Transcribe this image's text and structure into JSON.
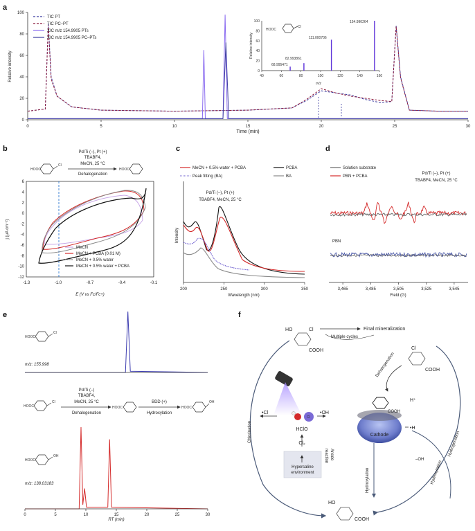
{
  "colors": {
    "purple": "#6a3fd1",
    "darkred": "#8c1b3d",
    "red": "#d42a2a",
    "blue": "#3c52c4",
    "gray": "#666666",
    "black": "#111111",
    "navy": "#2a2a9a",
    "dashblue": "#2f7ad1"
  },
  "panel_a": {
    "label": "a",
    "legend": [
      "TIC PT",
      "TIC PC–PT",
      "XIC m/z 154.9905 PTs",
      "XIC m/z 154.9905 PC–PTs"
    ],
    "inset": {
      "mol_label": "HOOC",
      "mz_label": "m/z",
      "ylabel": "Relative intensity",
      "peak_labels": [
        "154.990264",
        "111.000706",
        "82.993861",
        "68.995471"
      ],
      "chart_data": {
        "type": "bar",
        "x": [
          68.995471,
          82.993861,
          111.000706,
          154.990264
        ],
        "values": [
          8,
          15,
          62,
          100
        ],
        "xlim": [
          40,
          160
        ],
        "ylim": [
          0,
          100
        ],
        "xticks": [
          "40",
          "60",
          "80",
          "100",
          "120",
          "140",
          "160"
        ],
        "yticks": [
          "0",
          "20",
          "40",
          "60",
          "80",
          "100"
        ]
      }
    },
    "chart_data": {
      "type": "line",
      "title": "",
      "xlabel": "Time (min)",
      "ylabel": "Relative intensity",
      "xlim": [
        0,
        30
      ],
      "ylim": [
        0,
        100
      ],
      "xticks": [
        "0",
        "5",
        "10",
        "15",
        "20",
        "25",
        "30"
      ],
      "yticks": [
        "0",
        "20",
        "40",
        "60",
        "80",
        "100"
      ],
      "series": [
        {
          "name": "TIC PT",
          "x": [
            0,
            1.2,
            1.4,
            1.6,
            2,
            3,
            5,
            10,
            15,
            18,
            19,
            20,
            21,
            22,
            23,
            24,
            24.8,
            25.1,
            25.4,
            26,
            28,
            30
          ],
          "values": [
            8,
            10,
            90,
            40,
            22,
            12,
            9,
            8,
            9,
            11,
            18,
            27,
            25,
            23,
            19,
            16,
            17,
            88,
            40,
            9,
            8,
            8
          ]
        },
        {
          "name": "TIC PC–PT",
          "x": [
            0,
            1.2,
            1.4,
            1.6,
            2,
            3,
            5,
            10,
            15,
            18,
            19,
            20,
            21,
            22,
            23,
            24,
            24.8,
            25.1,
            25.4,
            26,
            28,
            30
          ],
          "values": [
            8,
            10,
            88,
            38,
            22,
            12,
            9,
            8,
            9,
            11,
            19,
            29,
            25,
            22,
            20,
            18,
            17,
            87,
            39,
            9,
            8,
            8
          ]
        },
        {
          "name": "XIC m/z 154.9905 PTs",
          "x": [
            0,
            11.9,
            12.0,
            12.1,
            13.3,
            13.45,
            13.6,
            20,
            30
          ],
          "values": [
            1,
            1,
            65,
            1,
            1,
            98,
            1,
            1,
            1
          ]
        },
        {
          "name": "XIC m/z 154.9905 PC–PTs",
          "x": [
            0,
            13.3,
            13.5,
            13.7,
            30
          ],
          "values": [
            1,
            1,
            72,
            1,
            1
          ]
        }
      ]
    }
  },
  "panel_b": {
    "label": "b",
    "conditions": [
      "Pd/Ti (–), Pt (+)",
      "TBABF4,",
      "MeCN, 25 °C"
    ],
    "arrow_label": "Dehalogenation",
    "mol_left": "HOOC",
    "mol_right": "HOOC",
    "cl": "Cl",
    "legend": [
      "MeCN",
      "MeCN + PCBA (0.01 M)",
      "MeCN + 0.5% water",
      "MeCN + 0.5% water + PCBA"
    ],
    "chart_data": {
      "type": "line",
      "xlabel": "E (V vs Fc/Fc+)",
      "ylabel": "j (μA cm⁻²)",
      "xlim": [
        -1.3,
        -0.1
      ],
      "ylim": [
        -12,
        6
      ],
      "xticks": [
        "-1.3",
        "-1.0",
        "-0.7",
        "-0.4",
        "-0.1"
      ],
      "yticks": [
        "6",
        "4",
        "2",
        "0",
        "-2",
        "-4",
        "-6",
        "-8",
        "-10",
        "-12"
      ],
      "dashed_line_x": -1.0
    }
  },
  "panel_c": {
    "label": "c",
    "legend": [
      "MeCN + 0.5% water + PCBA",
      "PCBA",
      "Peak fitting (BA)",
      "BA"
    ],
    "conditions": [
      "Pd/Ti (–), Pt (+)",
      "TBABF4, MeCN, 25 °C"
    ],
    "chart_data": {
      "type": "line",
      "xlabel": "Wavelength (nm)",
      "ylabel": "Intensity",
      "xlim": [
        200,
        350
      ],
      "xticks": [
        "200",
        "250",
        "300",
        "350"
      ]
    }
  },
  "panel_d": {
    "label": "d",
    "legend": [
      "Solution substrate",
      "PBN + PCBA"
    ],
    "conditions": [
      "Pd/Ti (–), Pt (+)",
      "TBABF4, MeCN, 25 °C"
    ],
    "pbn_label": "PBN",
    "chart_data": {
      "type": "line",
      "xlabel": "Field (G)",
      "xticks": [
        "3,465",
        "3,485",
        "3,505",
        "3,525",
        "3,545"
      ],
      "xlim": [
        3455,
        3555
      ]
    }
  },
  "panel_e": {
    "label": "e",
    "mz_top": "m/z: 155.998",
    "mz_bottom": "m/z: 138.03183",
    "conditions": [
      "Pd/Ti (–)",
      "TBABF4,",
      "MeCN, 25 °C"
    ],
    "dehalogenation": "Dehalogenation",
    "bdd": "BDD (+)",
    "hydroxylation": "Hydroxylation",
    "mol": "HOOC",
    "cl": "Cl",
    "oh": "OH",
    "chart_data": {
      "type": "line",
      "xlabel": "RT (min)",
      "xlim": [
        0,
        30
      ],
      "xticks": [
        "0",
        "5",
        "10",
        "15",
        "20",
        "25",
        "30"
      ],
      "series": [
        {
          "name": "m/z 155.998",
          "x": [
            0,
            16.5,
            16.9,
            17.3,
            30
          ],
          "values": [
            0,
            0,
            100,
            2,
            0
          ]
        },
        {
          "name": "m/z 138.03183",
          "x": [
            0,
            8.9,
            9.2,
            9.5,
            9.8,
            10.1,
            13.6,
            13.9,
            14.2,
            30
          ],
          "values": [
            0,
            0,
            100,
            5,
            25,
            2,
            2,
            85,
            2,
            0
          ]
        }
      ]
    }
  },
  "panel_f": {
    "label": "f",
    "top_mol": {
      "ho": "HO",
      "cl": "Cl",
      "cooh": "COOH"
    },
    "multiple_cycles": "Multiple cycles",
    "final_mineralization": "Final mineralization",
    "right_mol": {
      "cl": "Cl",
      "cooh": "COOH"
    },
    "dehalogenation": "Dehalogenation",
    "chlorination": "Chlorination",
    "hydrogenation": "Hydrogenation",
    "hydroxylation_left": "Hydroxylation",
    "hydroxylation_right": "Hydroxylation",
    "cathode": "Cathode",
    "radical_cl": "•Cl",
    "radical_oh": "•OH",
    "radical_h": "•H",
    "h_plus": "H⁺",
    "minus_oh": "–OH",
    "hclo": "HClO",
    "cl2": "Cl₂",
    "box_line1": "Hypersaline",
    "box_line2": "environment",
    "anode_line1": "Anode",
    "anode_line2": "reaction",
    "cl_atom": "Cl",
    "cathode_cooh": "COOH",
    "bottom_mol": {
      "ho": "HO",
      "cooh": "COOH"
    }
  }
}
